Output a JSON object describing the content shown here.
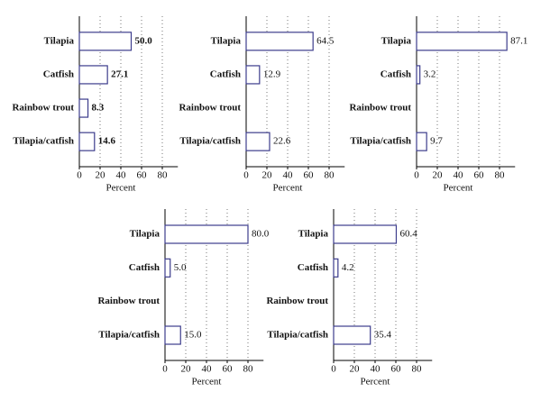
{
  "chart_data": [
    {
      "type": "bar",
      "orientation": "horizontal",
      "categories": [
        "Tilapia",
        "Catfish",
        "Rainbow trout",
        "Tilapia/catfish"
      ],
      "values": [
        50.0,
        27.1,
        8.3,
        14.6
      ],
      "value_labels": [
        "50.0",
        "27.1",
        "8.3",
        "14.6"
      ],
      "xlabel": "Percent",
      "xlim": [
        0,
        95
      ],
      "xticks": [
        0,
        20,
        40,
        60,
        80
      ],
      "grid": true,
      "color": "#3c3c8c"
    },
    {
      "type": "bar",
      "orientation": "horizontal",
      "categories": [
        "Tilapia",
        "Catfish",
        "Rainbow trout",
        "Tilapia/catfish"
      ],
      "values": [
        64.5,
        12.9,
        null,
        22.6
      ],
      "value_labels": [
        "64.5",
        "12.9",
        null,
        "22.6"
      ],
      "xlabel": "Percent",
      "xlim": [
        0,
        95
      ],
      "xticks": [
        0,
        20,
        40,
        60,
        80
      ],
      "grid": true,
      "color": "#3c3c8c"
    },
    {
      "type": "bar",
      "orientation": "horizontal",
      "categories": [
        "Tilapia",
        "Catfish",
        "Rainbow trout",
        "Tilapia/catfish"
      ],
      "values": [
        87.1,
        3.2,
        null,
        9.7
      ],
      "value_labels": [
        "87.1",
        "3.2",
        null,
        "9.7"
      ],
      "xlabel": "Percent",
      "xlim": [
        0,
        95
      ],
      "xticks": [
        0,
        20,
        40,
        60,
        80
      ],
      "grid": true,
      "color": "#3c3c8c"
    },
    {
      "type": "bar",
      "orientation": "horizontal",
      "categories": [
        "Tilapia",
        "Catfish",
        "Rainbow trout",
        "Tilapia/catfish"
      ],
      "values": [
        80.0,
        5.0,
        null,
        15.0
      ],
      "value_labels": [
        "80.0",
        "5.0",
        null,
        "15.0"
      ],
      "xlabel": "Percent",
      "xlim": [
        0,
        95
      ],
      "xticks": [
        0,
        20,
        40,
        60,
        80
      ],
      "grid": true,
      "color": "#3c3c8c"
    },
    {
      "type": "bar",
      "orientation": "horizontal",
      "categories": [
        "Tilapia",
        "Catfish",
        "Rainbow trout",
        "Tilapia/catfish"
      ],
      "values": [
        60.4,
        4.2,
        null,
        35.4
      ],
      "value_labels": [
        "60.4",
        "4.2",
        null,
        "35.4"
      ],
      "xlabel": "Percent",
      "xlim": [
        0,
        95
      ],
      "xticks": [
        0,
        20,
        40,
        60,
        80
      ],
      "grid": true,
      "color": "#3c3c8c"
    }
  ]
}
